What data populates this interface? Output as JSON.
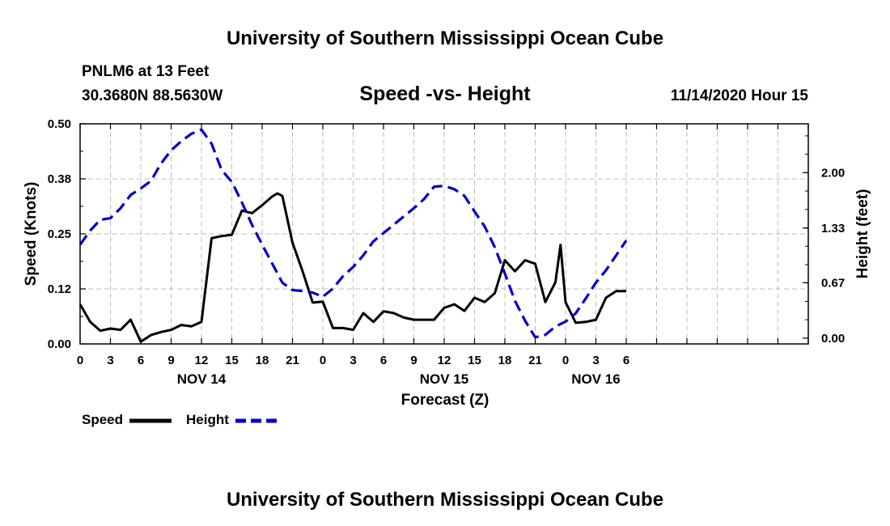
{
  "header": {
    "title": "University of Southern Mississippi Ocean Cube",
    "station": "PNLM6 at 13 Feet",
    "coords": "30.3680N 88.5630W",
    "datetime": "11/14/2020 Hour 15",
    "footer": "University of Southern Mississippi Ocean Cube"
  },
  "chart_data": {
    "type": "line",
    "title": "Speed -vs- Height",
    "xlabel": "Forecast (Z)",
    "ylabel": "Speed (Knots)",
    "y2label": "Height (feet)",
    "xlim": [
      0,
      72
    ],
    "ylim": [
      0,
      0.5
    ],
    "y2lim": [
      -0.07,
      2.59
    ],
    "x_ticks": [
      0,
      3,
      6,
      9,
      12,
      15,
      18,
      21,
      24,
      27,
      30,
      33,
      36,
      39,
      42,
      45,
      48,
      51,
      54,
      57,
      60,
      63,
      66,
      69,
      72
    ],
    "x_tick_labels": [
      "0",
      "3",
      "6",
      "9",
      "12",
      "15",
      "18",
      "21",
      "0",
      "3",
      "6",
      "9",
      "12",
      "15",
      "18",
      "21",
      "0",
      "3",
      "6"
    ],
    "x_tick_label_positions": [
      0,
      3,
      6,
      9,
      12,
      15,
      18,
      21,
      24,
      27,
      30,
      33,
      36,
      39,
      42,
      45,
      48,
      51,
      54
    ],
    "y_ticks": [
      0,
      0.125,
      0.25,
      0.375,
      0.5
    ],
    "y_tick_labels": [
      "0.00",
      "0.12",
      "0.25",
      "0.38",
      "0.50"
    ],
    "y2_ticks": [
      0,
      0.67,
      1.33,
      2.0
    ],
    "y2_tick_labels": [
      "0.00",
      "0.67",
      "1.33",
      "2.00"
    ],
    "day_labels": [
      {
        "label": "NOV 14",
        "x": 12
      },
      {
        "label": "NOV 15",
        "x": 36
      },
      {
        "label": "NOV 16",
        "x": 51
      }
    ],
    "grid": true,
    "legend": {
      "position": "bottom-left",
      "entries": [
        "Speed",
        "Height"
      ]
    },
    "series": [
      {
        "name": "Speed",
        "axis": "left",
        "color": "#000000",
        "dash": "solid",
        "x": [
          0,
          1,
          2,
          3,
          4,
          5,
          6,
          7,
          8,
          9,
          10,
          11,
          12,
          13,
          14,
          15,
          16,
          17,
          18,
          19,
          19.5,
          20,
          21,
          22,
          23,
          24,
          25,
          26,
          27,
          28,
          29,
          30,
          31,
          32,
          33,
          34,
          35,
          36,
          37,
          38,
          39,
          40,
          41,
          42,
          43,
          44,
          45,
          46,
          47,
          47.5,
          48,
          49,
          50,
          51,
          52,
          53,
          54
        ],
        "values": [
          0.09,
          0.05,
          0.03,
          0.035,
          0.032,
          0.055,
          0.005,
          0.02,
          0.027,
          0.032,
          0.043,
          0.04,
          0.05,
          0.24,
          0.245,
          0.248,
          0.303,
          0.297,
          0.315,
          0.335,
          0.342,
          0.336,
          0.23,
          0.165,
          0.094,
          0.096,
          0.036,
          0.036,
          0.032,
          0.07,
          0.05,
          0.074,
          0.07,
          0.06,
          0.055,
          0.055,
          0.055,
          0.082,
          0.09,
          0.075,
          0.105,
          0.095,
          0.115,
          0.19,
          0.165,
          0.19,
          0.182,
          0.095,
          0.14,
          0.225,
          0.095,
          0.048,
          0.05,
          0.055,
          0.105,
          0.12,
          0.12
        ]
      },
      {
        "name": "Height",
        "axis": "right",
        "color": "#0000cc",
        "dash": "dashed",
        "x": [
          0,
          1,
          2,
          3,
          4,
          5,
          6,
          7,
          8,
          9,
          10,
          11,
          12,
          13,
          14,
          15,
          16,
          17,
          18,
          19,
          20,
          21,
          22,
          23,
          24,
          25,
          26,
          27,
          28,
          29,
          30,
          31,
          32,
          33,
          34,
          35,
          36,
          37,
          38,
          39,
          40,
          41,
          42,
          43,
          44,
          45,
          46,
          47,
          48,
          49,
          50,
          51,
          52,
          53,
          54
        ],
        "values": [
          1.13,
          1.3,
          1.43,
          1.45,
          1.57,
          1.73,
          1.81,
          1.9,
          2.11,
          2.27,
          2.38,
          2.47,
          2.52,
          2.35,
          2.03,
          1.89,
          1.64,
          1.37,
          1.13,
          0.9,
          0.67,
          0.58,
          0.57,
          0.55,
          0.5,
          0.6,
          0.75,
          0.86,
          1.0,
          1.17,
          1.27,
          1.37,
          1.47,
          1.57,
          1.68,
          1.83,
          1.84,
          1.8,
          1.72,
          1.53,
          1.35,
          1.1,
          0.78,
          0.45,
          0.21,
          0.01,
          0.04,
          0.14,
          0.2,
          0.3,
          0.48,
          0.67,
          0.82,
          1.0,
          1.18
        ]
      }
    ]
  }
}
